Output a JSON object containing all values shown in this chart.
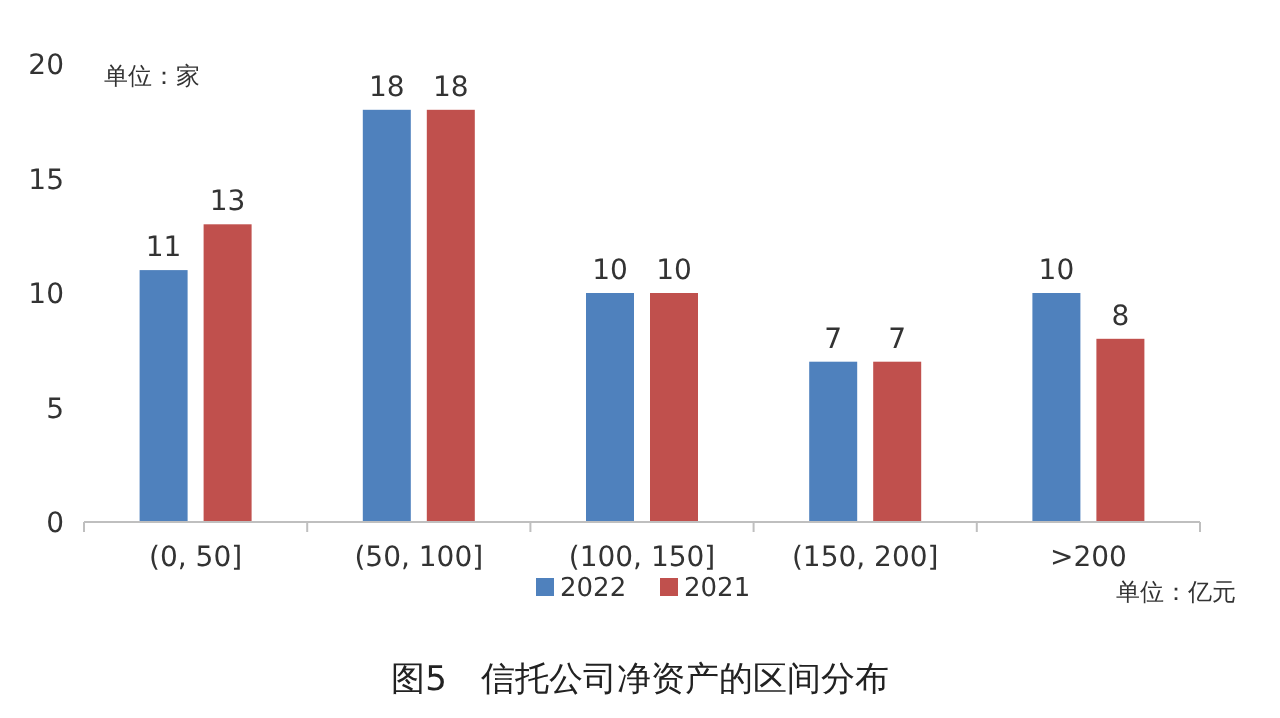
{
  "chart_data": {
    "type": "bar",
    "title": "图5　信托公司净资产的区间分布",
    "categories": [
      "(0, 50]",
      "(50, 100]",
      "(100, 150]",
      "(150, 200]",
      ">200"
    ],
    "series": [
      {
        "name": "2022",
        "color": "#4f81bd",
        "values": [
          11,
          18,
          10,
          7,
          10
        ]
      },
      {
        "name": "2021",
        "color": "#c0504d",
        "values": [
          13,
          18,
          10,
          7,
          8
        ]
      }
    ],
    "ylim": [
      0,
      20
    ],
    "yticks": [
      0,
      5,
      10,
      15,
      20
    ],
    "data_labels": true,
    "legend": "bottom",
    "grid": false,
    "annotations": [
      "单位：家",
      "单位：亿元"
    ]
  }
}
